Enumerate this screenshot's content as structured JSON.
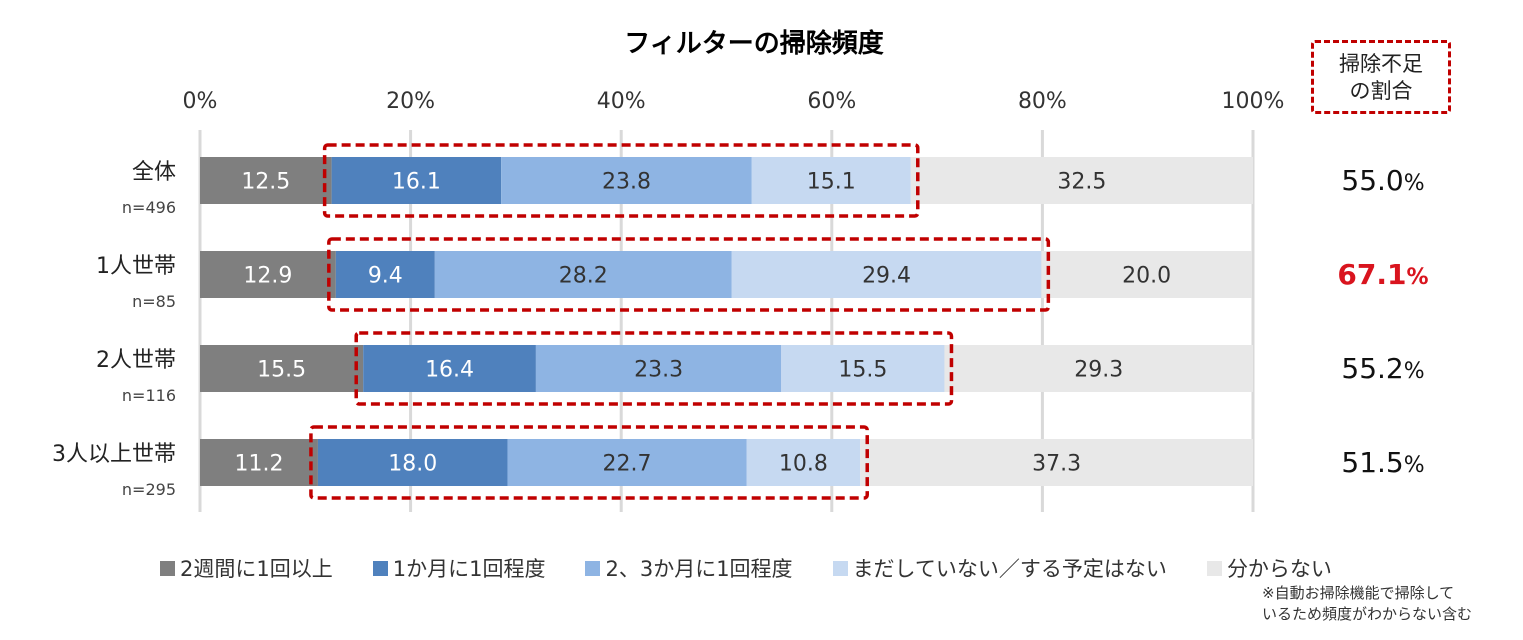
{
  "chart_data": {
    "type": "stacked-bar-horizontal",
    "title": "フィルターの掃除頻度",
    "xlim": [
      0,
      100
    ],
    "x_ticks": [
      "0%",
      "20%",
      "40%",
      "60%",
      "80%",
      "100%"
    ],
    "categories": [
      {
        "label": "全体",
        "n": "n=496"
      },
      {
        "label": "1人世帯",
        "n": "n=85"
      },
      {
        "label": "2人世帯",
        "n": "n=116"
      },
      {
        "label": "3人以上世帯",
        "n": "n=295"
      }
    ],
    "series": [
      {
        "name": "2週間に1回以上",
        "color": "#7f7f7f",
        "label_color": "#ffffff",
        "values": [
          12.5,
          12.9,
          15.5,
          11.2
        ],
        "labels": [
          "12.5",
          "12.9",
          "15.5",
          "11.2"
        ]
      },
      {
        "name": "1か月に1回程度",
        "color": "#4f81bd",
        "label_color": "#ffffff",
        "values": [
          16.1,
          9.4,
          16.4,
          18.0
        ],
        "labels": [
          "16.1",
          "9.4",
          "16.4",
          "18.0"
        ]
      },
      {
        "name": "2、3か月に1回程度",
        "color": "#8eb4e3",
        "label_color": "#333333",
        "values": [
          23.8,
          28.2,
          23.3,
          22.7
        ],
        "labels": [
          "23.8",
          "28.2",
          "23.3",
          "22.7"
        ]
      },
      {
        "name": "まだしていない／する予定はない",
        "color": "#c6d9f1",
        "label_color": "#333333",
        "values": [
          15.1,
          29.4,
          15.5,
          10.8
        ],
        "labels": [
          "15.1",
          "29.4",
          "15.5",
          "10.8"
        ]
      },
      {
        "name": "分からない",
        "color": "#e8e8e8",
        "label_color": "#333333",
        "values": [
          32.5,
          20.0,
          29.3,
          37.3
        ],
        "labels": [
          "32.5",
          "20.0",
          "29.3",
          "37.3"
        ]
      }
    ],
    "highlighted_series": [
      "1か月に1回程度",
      "2、3か月に1回程度",
      "まだしていない／する予定はない"
    ],
    "ratio_header": "掃除不足の割合",
    "ratio_header_lines": [
      "掃除不足",
      "の割合"
    ],
    "ratio_values": [
      {
        "value": "55.0",
        "unit": "%",
        "highlight": false
      },
      {
        "value": "67.1",
        "unit": "%",
        "highlight": true
      },
      {
        "value": "55.2",
        "unit": "%",
        "highlight": false
      },
      {
        "value": "51.5",
        "unit": "%",
        "highlight": false
      }
    ],
    "note_lines": [
      "※自動お掃除機能で掃除して",
      "いるため頻度がわからない含む"
    ]
  },
  "colors": {
    "highlight_box": "#c00000",
    "highlight_value": "#d9141e",
    "gridline": "#d9d9d9"
  }
}
